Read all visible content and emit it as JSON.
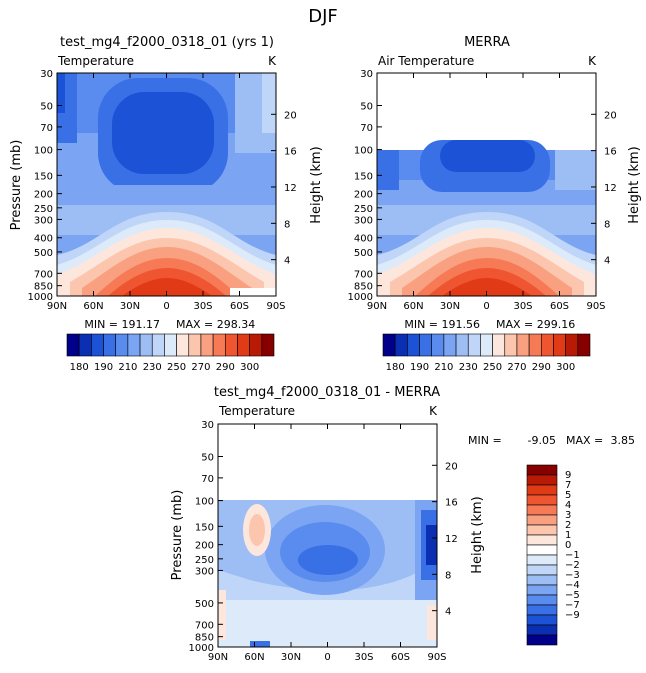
{
  "page": {
    "title": "DJF"
  },
  "colors": {
    "abs_levels": [
      "#00008b",
      "#0a2fb3",
      "#1c53d6",
      "#3a70e6",
      "#5a8bee",
      "#7ba4f2",
      "#9dbdf5",
      "#c0d6f9",
      "#ddeaf9",
      "#fde6dc",
      "#fcc5ae",
      "#f9a080",
      "#f57a55",
      "#ef5530",
      "#e03a17",
      "#b91a05",
      "#870000"
    ],
    "diff_levels": [
      "#00008b",
      "#0a2fb3",
      "#1c53d6",
      "#3a70e6",
      "#5a8bee",
      "#7ba4f2",
      "#9dbdf5",
      "#c0d6f9",
      "#ddeaf9",
      "#ffffff",
      "#fde6dc",
      "#fcc5ae",
      "#f9a080",
      "#f57a55",
      "#ef5530",
      "#e03a17",
      "#b91a05",
      "#870000"
    ]
  },
  "chart_data": [
    {
      "type": "heatmap",
      "title": "test_mg4_f2000_0318_01 (yrs 1)",
      "subtitle_left": "Temperature",
      "subtitle_right": "K",
      "ylabel": "Pressure (mb)",
      "ylabel_right": "Height (km)",
      "x_ticks": [
        "90N",
        "60N",
        "30N",
        "0",
        "30S",
        "60S",
        "90S"
      ],
      "y_ticks": [
        "30",
        "50",
        "70",
        "100",
        "150",
        "200",
        "250",
        "300",
        "400",
        "500",
        "700",
        "850",
        "1000"
      ],
      "y_right_ticks": [
        "20",
        "16",
        "12",
        "8",
        "4"
      ],
      "ylim": [
        30,
        1000
      ],
      "min_label": "MIN = 191.17",
      "max_label": "MAX = 298.34",
      "colorbar_ticks": [
        "180",
        "190",
        "210",
        "230",
        "250",
        "270",
        "290",
        "300"
      ],
      "data_top_pressure": 30
    },
    {
      "type": "heatmap",
      "title": "MERRA",
      "subtitle_left": "Air Temperature",
      "subtitle_right": "K",
      "ylabel": "Pressure (mb)",
      "ylabel_right": "Height (km)",
      "x_ticks": [
        "90N",
        "60N",
        "30N",
        "0",
        "30S",
        "60S",
        "90S"
      ],
      "y_ticks": [
        "30",
        "50",
        "70",
        "100",
        "150",
        "200",
        "250",
        "300",
        "400",
        "500",
        "700",
        "850",
        "1000"
      ],
      "y_right_ticks": [
        "20",
        "16",
        "12",
        "8",
        "4"
      ],
      "ylim": [
        30,
        1000
      ],
      "min_label": "MIN = 191.56",
      "max_label": "MAX = 299.16",
      "colorbar_ticks": [
        "180",
        "190",
        "210",
        "230",
        "250",
        "270",
        "290",
        "300"
      ],
      "data_top_pressure": 100
    },
    {
      "type": "heatmap",
      "title": "test_mg4_f2000_0318_01 - MERRA",
      "subtitle_left": "Temperature",
      "subtitle_right": "K",
      "ylabel": "Pressure (mb)",
      "ylabel_right": "Height (km)",
      "x_ticks": [
        "90N",
        "60N",
        "30N",
        "0",
        "30S",
        "60S",
        "90S"
      ],
      "y_ticks": [
        "30",
        "50",
        "70",
        "100",
        "150",
        "200",
        "250",
        "300",
        "500",
        "700",
        "850",
        "1000"
      ],
      "y_right_ticks": [
        "20",
        "16",
        "12",
        "8",
        "4"
      ],
      "ylim": [
        30,
        1000
      ],
      "min_label": "MIN =",
      "min_value": "-9.05",
      "max_label": "MAX =",
      "max_value": "3.85",
      "colorbar_ticks": [
        "9",
        "7",
        "5",
        "4",
        "3",
        "2",
        "1",
        "0",
        "−1",
        "−2",
        "−3",
        "−4",
        "−5",
        "−7",
        "−9"
      ],
      "data_top_pressure": 100
    }
  ]
}
